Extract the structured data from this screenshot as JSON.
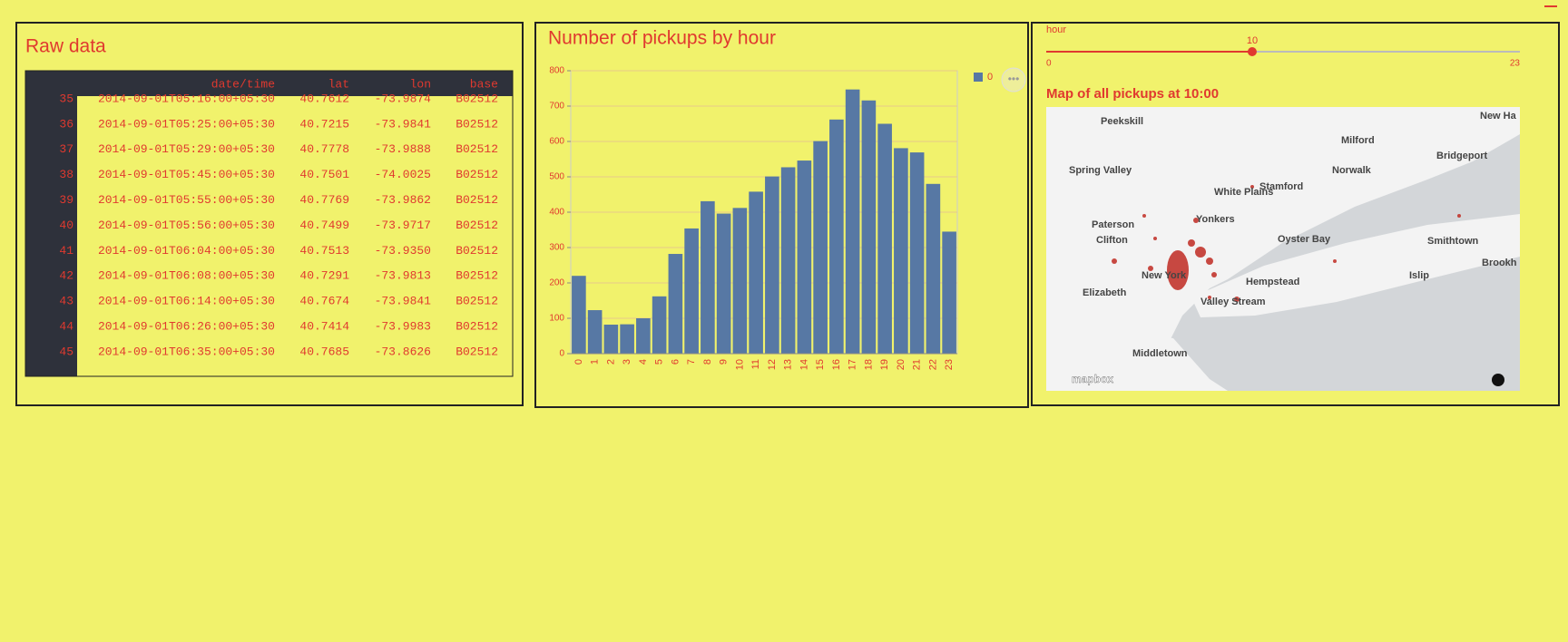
{
  "raw_data": {
    "title": "Raw data",
    "columns": [
      "date/time",
      "lat",
      "lon",
      "base"
    ],
    "rows": [
      {
        "index": "35",
        "cells": [
          "2014-09-01T05:16:00+05:30",
          "40.7612",
          "-73.9874",
          "B02512"
        ]
      },
      {
        "index": "36",
        "cells": [
          "2014-09-01T05:25:00+05:30",
          "40.7215",
          "-73.9841",
          "B02512"
        ]
      },
      {
        "index": "37",
        "cells": [
          "2014-09-01T05:29:00+05:30",
          "40.7778",
          "-73.9888",
          "B02512"
        ]
      },
      {
        "index": "38",
        "cells": [
          "2014-09-01T05:45:00+05:30",
          "40.7501",
          "-74.0025",
          "B02512"
        ]
      },
      {
        "index": "39",
        "cells": [
          "2014-09-01T05:55:00+05:30",
          "40.7769",
          "-73.9862",
          "B02512"
        ]
      },
      {
        "index": "40",
        "cells": [
          "2014-09-01T05:56:00+05:30",
          "40.7499",
          "-73.9717",
          "B02512"
        ]
      },
      {
        "index": "41",
        "cells": [
          "2014-09-01T06:04:00+05:30",
          "40.7513",
          "-73.9350",
          "B02512"
        ]
      },
      {
        "index": "42",
        "cells": [
          "2014-09-01T06:08:00+05:30",
          "40.7291",
          "-73.9813",
          "B02512"
        ]
      },
      {
        "index": "43",
        "cells": [
          "2014-09-01T06:14:00+05:30",
          "40.7674",
          "-73.9841",
          "B02512"
        ]
      },
      {
        "index": "44",
        "cells": [
          "2014-09-01T06:26:00+05:30",
          "40.7414",
          "-73.9983",
          "B02512"
        ]
      },
      {
        "index": "45",
        "cells": [
          "2014-09-01T06:35:00+05:30",
          "40.7685",
          "-73.8626",
          "B02512"
        ]
      }
    ]
  },
  "chart_data": {
    "type": "bar",
    "title": "Number of pickups by hour",
    "categories": [
      "0",
      "1",
      "2",
      "3",
      "4",
      "5",
      "6",
      "7",
      "8",
      "9",
      "10",
      "11",
      "12",
      "13",
      "14",
      "15",
      "16",
      "17",
      "18",
      "19",
      "20",
      "21",
      "22",
      "23"
    ],
    "series": [
      {
        "name": "0",
        "color": "#5778a4",
        "values": [
          220,
          123,
          82,
          83,
          100,
          162,
          282,
          354,
          431,
          396,
          412,
          458,
          501,
          527,
          546,
          601,
          662,
          747,
          716,
          650,
          581,
          569,
          480,
          345
        ]
      }
    ],
    "ylim": [
      0,
      800
    ],
    "yticks": [
      0,
      100,
      200,
      300,
      400,
      500,
      600,
      700,
      800
    ],
    "grid": true
  },
  "map_panel": {
    "slider": {
      "label": "hour",
      "value": 10,
      "min": 0,
      "max": 23
    },
    "title": "Map of all pickups at 10:00",
    "places": [
      "Peekskill",
      "New Ha",
      "Milford",
      "Bridgeport",
      "Norwalk",
      "Spring Valley",
      "White Plains",
      "Stamford",
      "Yonkers",
      "Paterson",
      "Clifton",
      "Oyster Bay",
      "Smithtown",
      "New York",
      "Hempstead",
      "Islip",
      "Brookh",
      "Elizabeth",
      "Valley Stream",
      "Middletown"
    ],
    "attribution": "mapbox"
  }
}
